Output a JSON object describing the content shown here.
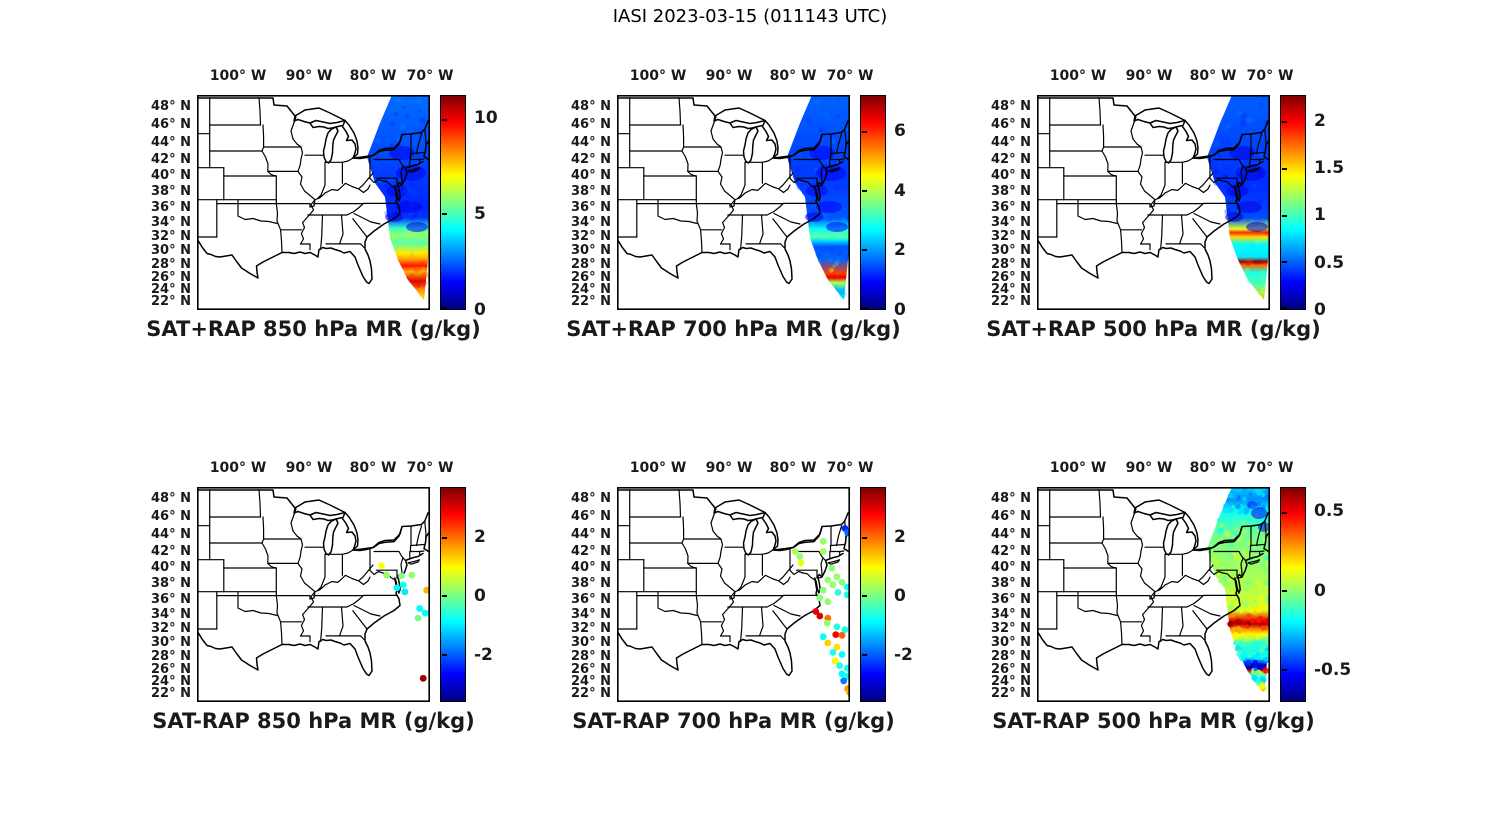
{
  "figure_title": "IASI 2023-03-15 (011143 UTC)",
  "axes": {
    "lon_tick_labels": [
      "100° W",
      "90° W",
      "80° W",
      "70° W"
    ],
    "lon_tick_values": [
      100,
      90,
      80,
      70
    ],
    "lat_tick_labels": [
      "48° N",
      "46° N",
      "44° N",
      "42° N",
      "40° N",
      "38° N",
      "36° N",
      "34° N",
      "32° N",
      "30° N",
      "28° N",
      "26° N",
      "24° N",
      "22° N"
    ],
    "lat_tick_values": [
      48,
      46,
      44,
      42,
      40,
      38,
      36,
      34,
      32,
      30,
      28,
      26,
      24,
      22
    ]
  },
  "chart_data": {
    "type": "heatmap",
    "subtype": "satellite-swath-maps",
    "colormap": "jet",
    "region": "Eastern United States and western Atlantic",
    "panels": [
      {
        "title": "SAT+RAP 850 hPa MR (g/kg)",
        "row": 0,
        "col": 0,
        "display": "swath",
        "units": "g/kg",
        "clim": [
          0,
          11.2
        ],
        "colorbar_tick_values": [
          0,
          5,
          10
        ],
        "colorbar_tick_labels": [
          "0",
          "5",
          "10"
        ],
        "swath_profile": [
          [
            49.3,
            2.6
          ],
          [
            42.3,
            2.2
          ],
          [
            36.0,
            1.8
          ],
          [
            34.6,
            2.0
          ],
          [
            33.2,
            4.8
          ],
          [
            32.4,
            5.8
          ],
          [
            31.1,
            5.2
          ],
          [
            29.7,
            7.2
          ],
          [
            28.8,
            8.0
          ],
          [
            27.8,
            9.6
          ],
          [
            26.9,
            7.8
          ],
          [
            25.4,
            10.2
          ],
          [
            24.0,
            8.2
          ],
          [
            22.1,
            7.4
          ]
        ]
      },
      {
        "title": "SAT+RAP 700 hPa MR (g/kg)",
        "row": 0,
        "col": 1,
        "display": "swath",
        "units": "g/kg",
        "clim": [
          0,
          7.2
        ],
        "colorbar_tick_values": [
          0,
          2,
          4,
          6
        ],
        "colorbar_tick_labels": [
          "0",
          "2",
          "4",
          "6"
        ],
        "swath_profile": [
          [
            49.3,
            1.6
          ],
          [
            39.9,
            1.3
          ],
          [
            34.6,
            1.5
          ],
          [
            33.1,
            2.8
          ],
          [
            32.0,
            3.4
          ],
          [
            31.6,
            2.6
          ],
          [
            30.6,
            1.5
          ],
          [
            28.8,
            1.6
          ],
          [
            26.6,
            5.9
          ],
          [
            26.0,
            6.5
          ],
          [
            25.2,
            4.0
          ],
          [
            24.0,
            2.2
          ],
          [
            22.5,
            2.4
          ],
          [
            22.1,
            5.2
          ]
        ]
      },
      {
        "title": "SAT+RAP 500 hPa MR (g/kg)",
        "row": 0,
        "col": 2,
        "display": "swath",
        "units": "g/kg",
        "clim": [
          0,
          2.27
        ],
        "colorbar_tick_values": [
          0,
          0.5,
          1,
          1.5,
          2
        ],
        "colorbar_tick_labels": [
          "0",
          "0.5",
          "1",
          "1.5",
          "2"
        ],
        "swath_profile": [
          [
            49.3,
            0.5
          ],
          [
            38.6,
            0.38
          ],
          [
            34.6,
            0.45
          ],
          [
            33.1,
            1.35
          ],
          [
            32.6,
            1.9
          ],
          [
            32.0,
            1.5
          ],
          [
            31.0,
            0.85
          ],
          [
            29.1,
            0.8
          ],
          [
            28.4,
            2.2
          ],
          [
            27.9,
            1.75
          ],
          [
            26.8,
            0.9
          ],
          [
            24.8,
            1.05
          ],
          [
            22.1,
            1.55
          ]
        ]
      },
      {
        "title": "SAT-RAP 850 hPa MR (g/kg)",
        "row": 1,
        "col": 0,
        "display": "scatter",
        "units": "g/kg",
        "clim": [
          -3.6,
          3.7
        ],
        "colorbar_tick_values": [
          -2,
          0,
          2
        ],
        "colorbar_tick_labels": [
          "-2",
          "0",
          "2"
        ],
        "points": [
          [
            40.3,
            78.5,
            0.9
          ],
          [
            39.1,
            77.6,
            0.2
          ],
          [
            39.0,
            75.0,
            0.1
          ],
          [
            39.1,
            73.2,
            0.2
          ],
          [
            37.9,
            74.7,
            -0.7
          ],
          [
            37.5,
            75.8,
            -0.9
          ],
          [
            37.0,
            74.4,
            -1.0
          ],
          [
            37.2,
            70.6,
            1.5
          ],
          [
            34.8,
            71.8,
            -0.9
          ],
          [
            34.2,
            70.9,
            -0.8
          ],
          [
            34.2,
            70.0,
            -0.9
          ],
          [
            33.5,
            72.1,
            0.0
          ],
          [
            24.6,
            71.2,
            3.5
          ]
        ]
      },
      {
        "title": "SAT-RAP 700 hPa MR (g/kg)",
        "row": 1,
        "col": 1,
        "display": "scatter",
        "units": "g/kg",
        "clim": [
          -3.6,
          3.7
        ],
        "colorbar_tick_values": [
          -2,
          0,
          2
        ],
        "colorbar_tick_labels": [
          "-2",
          "0",
          "2"
        ],
        "points": [
          [
            44.7,
            70.9,
            -2.4
          ],
          [
            44.2,
            70.4,
            -1.9
          ],
          [
            43.2,
            74.7,
            0.2
          ],
          [
            42.0,
            79.6,
            0.3
          ],
          [
            41.4,
            78.8,
            0.2
          ],
          [
            42.0,
            74.7,
            0.3
          ],
          [
            40.6,
            78.6,
            0.8
          ],
          [
            40.0,
            73.2,
            0.1
          ],
          [
            38.9,
            72.3,
            0.2
          ],
          [
            38.2,
            71.4,
            0.1
          ],
          [
            37.6,
            70.5,
            -0.7
          ],
          [
            38.5,
            73.9,
            0.2
          ],
          [
            37.9,
            73.0,
            0.2
          ],
          [
            37.2,
            74.7,
            0.1
          ],
          [
            36.9,
            72.1,
            -0.6
          ],
          [
            36.6,
            70.5,
            -0.7
          ],
          [
            36.2,
            75.3,
            0.1
          ],
          [
            35.7,
            73.9,
            0.2
          ],
          [
            34.4,
            76.0,
            2.9
          ],
          [
            33.8,
            75.3,
            3.1
          ],
          [
            33.5,
            73.9,
            2.0
          ],
          [
            32.8,
            74.0,
            0.2
          ],
          [
            32.3,
            72.3,
            -0.6
          ],
          [
            31.9,
            70.9,
            -0.7
          ],
          [
            31.2,
            72.5,
            2.8
          ],
          [
            31.1,
            71.4,
            2.1
          ],
          [
            30.9,
            74.7,
            -0.8
          ],
          [
            30.0,
            73.9,
            1.3
          ],
          [
            29.4,
            72.3,
            1.2
          ],
          [
            28.6,
            73.0,
            -0.7
          ],
          [
            28.3,
            71.4,
            -0.8
          ],
          [
            27.3,
            72.6,
            1.0
          ],
          [
            26.6,
            71.8,
            -0.6
          ],
          [
            26.2,
            70.5,
            -0.7
          ],
          [
            25.3,
            71.4,
            -0.9
          ],
          [
            24.9,
            70.4,
            -0.8
          ],
          [
            24.2,
            71.1,
            -1.8
          ],
          [
            22.9,
            70.4,
            1.7
          ],
          [
            22.3,
            70.1,
            1.5
          ]
        ]
      },
      {
        "title": "SAT-RAP 500 hPa MR (g/kg)",
        "row": 1,
        "col": 2,
        "display": "swath",
        "units": "g/kg",
        "clim": [
          -0.7,
          0.65
        ],
        "colorbar_tick_values": [
          -0.5,
          0,
          0.5
        ],
        "colorbar_tick_labels": [
          "-0.5",
          "0",
          "0.5"
        ],
        "swath_profile": [
          [
            49.3,
            -0.25
          ],
          [
            48.0,
            -0.35
          ],
          [
            46.6,
            -0.18
          ],
          [
            44.3,
            -0.05
          ],
          [
            41.1,
            0.0
          ],
          [
            37.3,
            0.05
          ],
          [
            34.6,
            0.1
          ],
          [
            33.1,
            0.52
          ],
          [
            32.7,
            0.58
          ],
          [
            32.0,
            0.3
          ],
          [
            31.2,
            0.15
          ],
          [
            30.0,
            -0.12
          ],
          [
            27.9,
            -0.2
          ],
          [
            26.7,
            -0.6
          ],
          [
            26.1,
            -0.62
          ],
          [
            25.8,
            0.5
          ],
          [
            25.3,
            -0.15
          ],
          [
            24.3,
            -0.2
          ],
          [
            22.1,
            0.35
          ]
        ]
      }
    ]
  }
}
